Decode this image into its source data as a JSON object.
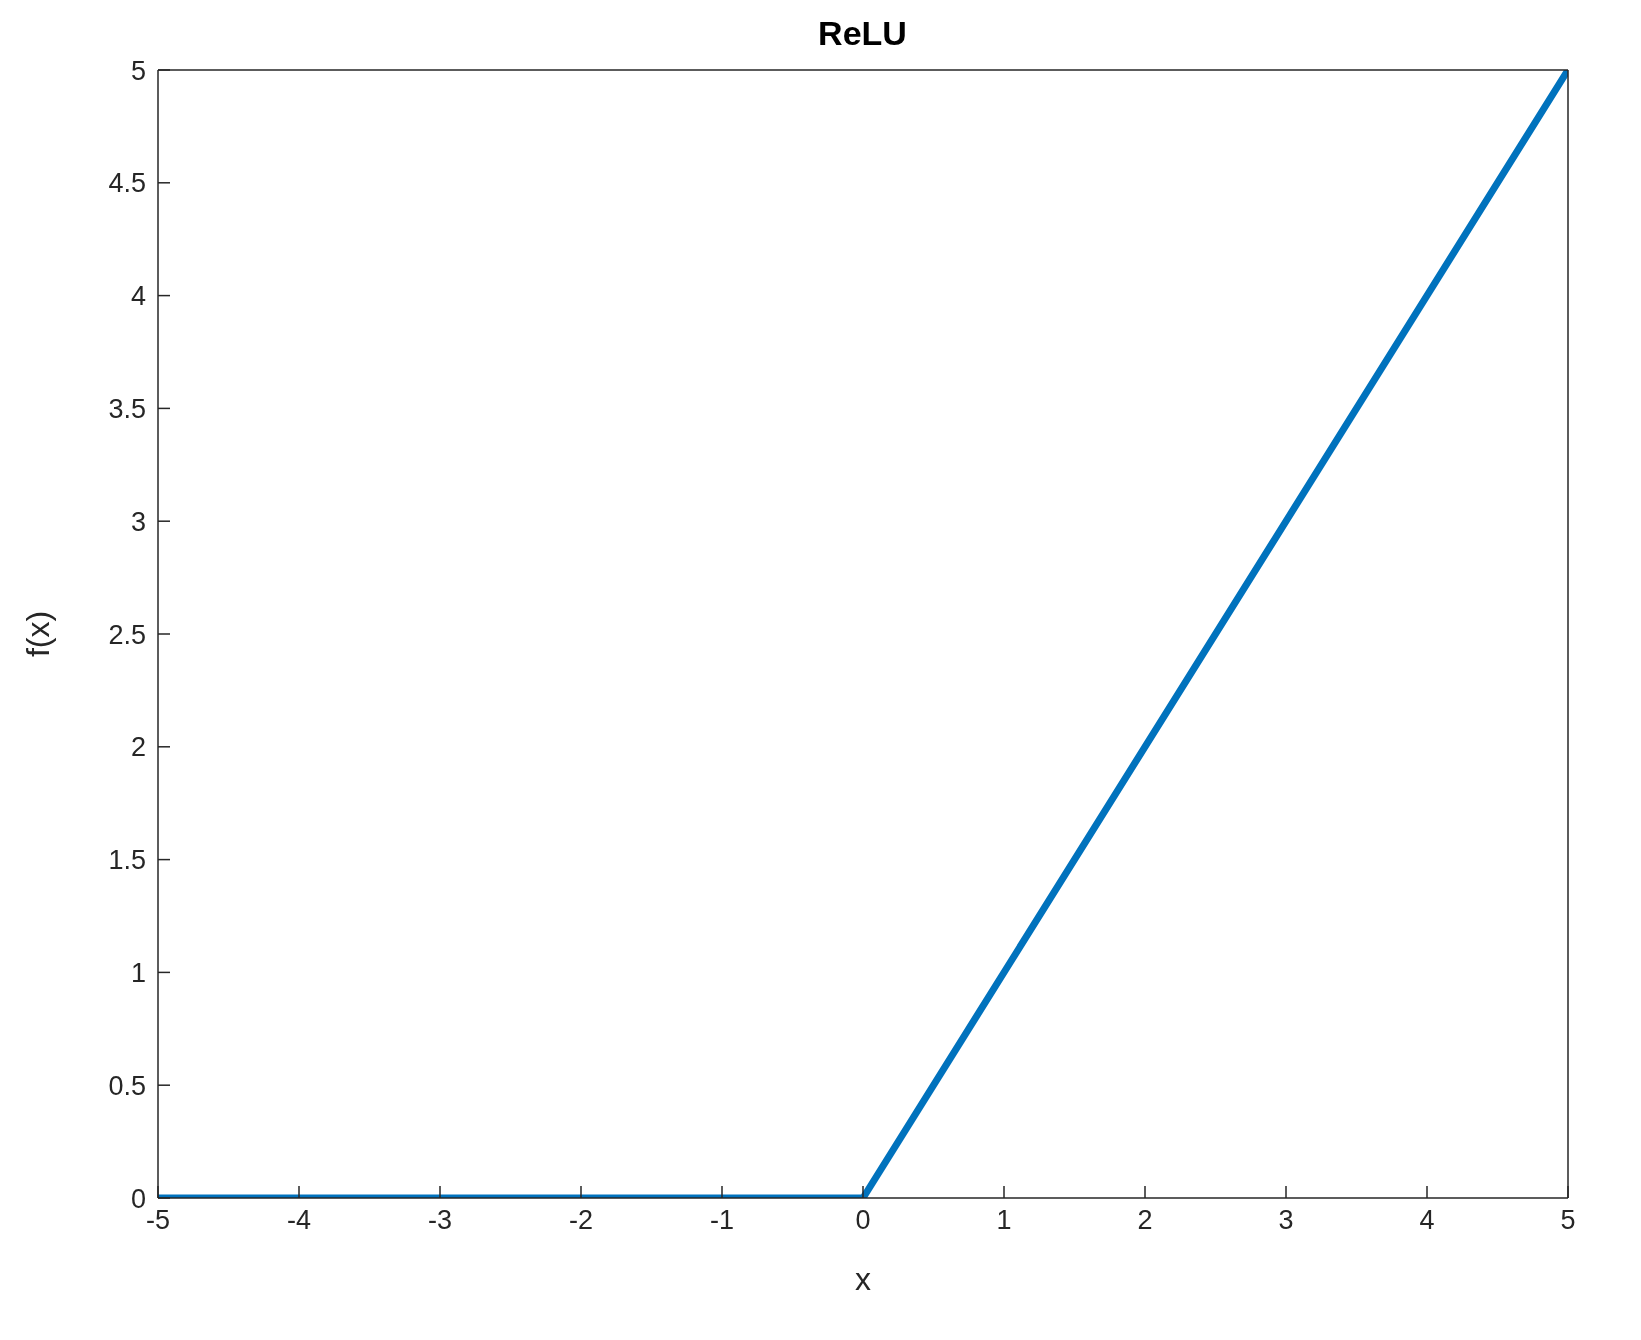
{
  "chart_data": {
    "type": "line",
    "title": "ReLU",
    "xlabel": "x",
    "ylabel": "f(x)",
    "x": [
      -5,
      0,
      5
    ],
    "series": [
      {
        "color": "#0072bd",
        "values": [
          0,
          0,
          5
        ]
      }
    ],
    "xlim": [
      -5,
      5
    ],
    "xticks": [
      -5,
      -4,
      -3,
      -2,
      -1,
      0,
      1,
      2,
      3,
      4,
      5
    ],
    "ylim": [
      0,
      5
    ],
    "yticks": [
      0,
      0.5,
      1,
      1.5,
      2,
      2.5,
      3,
      3.5,
      4,
      4.5,
      5
    ],
    "marker": "none",
    "line_style": "solid"
  }
}
